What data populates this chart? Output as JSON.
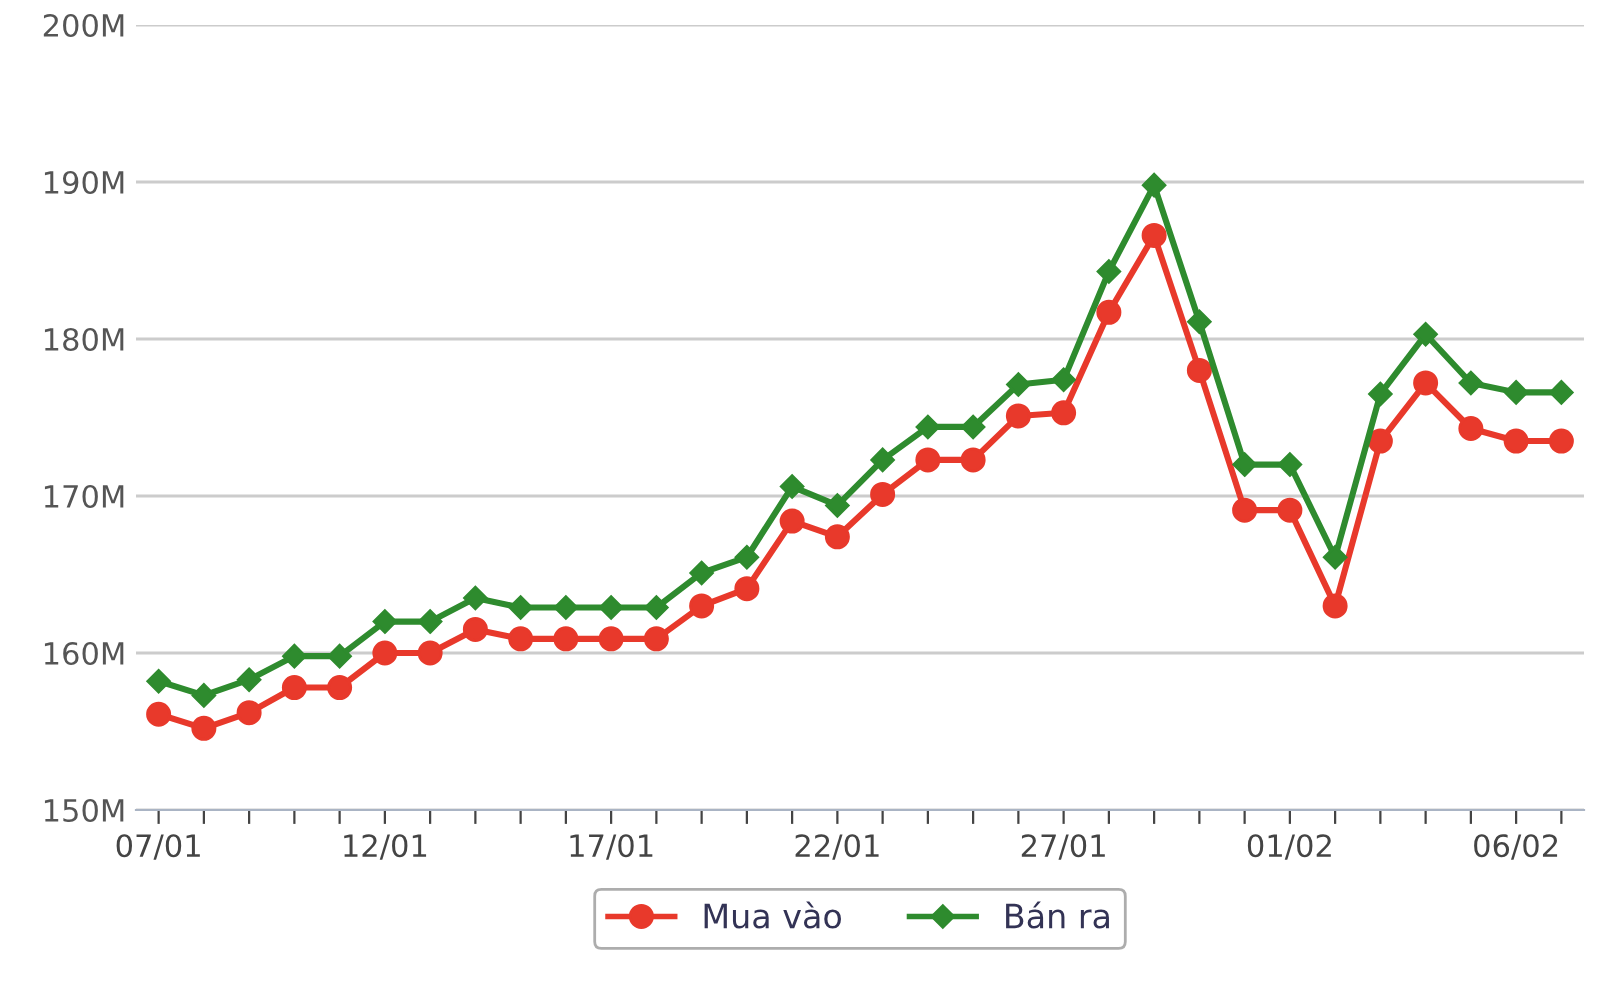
{
  "chart_data": {
    "type": "line",
    "categories": [
      "07/01",
      null,
      null,
      null,
      null,
      "12/01",
      null,
      null,
      null,
      null,
      "17/01",
      null,
      null,
      null,
      null,
      "22/01",
      null,
      null,
      null,
      null,
      "27/01",
      null,
      null,
      null,
      null,
      "01/02",
      null,
      null,
      null,
      null,
      "06/02",
      null
    ],
    "series": [
      {
        "name": "Mua vào",
        "color": "#e8392b",
        "marker": "circle",
        "values": [
          156.1,
          155.2,
          156.2,
          157.8,
          157.8,
          160.0,
          160.0,
          161.5,
          160.9,
          160.9,
          160.9,
          160.9,
          163.0,
          164.1,
          168.4,
          167.4,
          170.1,
          172.3,
          172.3,
          175.1,
          175.3,
          181.7,
          186.6,
          178.0,
          169.1,
          169.1,
          163.0,
          173.5,
          177.2,
          174.3,
          173.5,
          173.5
        ]
      },
      {
        "name": "Bán ra",
        "color": "#2e8b2e",
        "marker": "diamond",
        "values": [
          158.2,
          157.3,
          158.3,
          159.8,
          159.8,
          162.0,
          162.0,
          163.5,
          162.9,
          162.9,
          162.9,
          162.9,
          165.1,
          166.1,
          170.6,
          169.4,
          172.3,
          174.4,
          174.4,
          177.1,
          177.4,
          184.3,
          189.8,
          181.1,
          172.0,
          172.0,
          166.1,
          176.5,
          180.3,
          177.2,
          176.6,
          176.6
        ]
      }
    ],
    "ylim": [
      150,
      200
    ],
    "yticks": [
      {
        "value": 150,
        "label": "150M"
      },
      {
        "value": 160,
        "label": "160M"
      },
      {
        "value": 170,
        "label": "170M"
      },
      {
        "value": 180,
        "label": "180M"
      },
      {
        "value": 190,
        "label": "190M"
      },
      {
        "value": 200,
        "label": "200M"
      }
    ],
    "grid": "y",
    "legend": "bottom",
    "line_style": "solid"
  }
}
